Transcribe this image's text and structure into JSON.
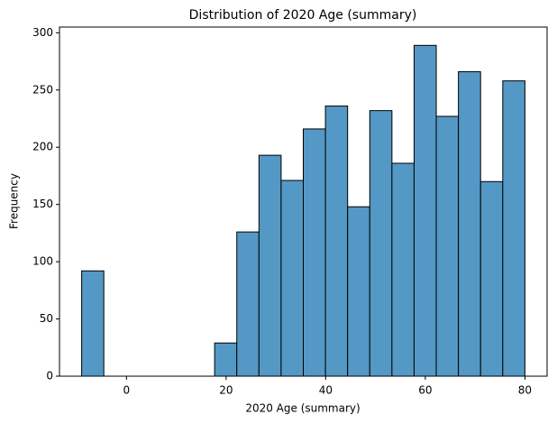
{
  "chart_data": {
    "type": "histogram",
    "title": "Distribution of 2020 Age (summary)",
    "x_label": "2020 Age (summary)",
    "y_label": "Frequency",
    "bins": [
      -9,
      -4.55,
      -0.1,
      4.35,
      8.8,
      13.25,
      17.7,
      22.15,
      26.6,
      31.05,
      35.5,
      39.95,
      44.4,
      48.85,
      53.3,
      57.75,
      62.2,
      66.65,
      71.1,
      75.55,
      80
    ],
    "values": [
      92,
      0,
      0,
      0,
      0,
      0,
      29,
      126,
      193,
      171,
      216,
      236,
      148,
      232,
      186,
      289,
      227,
      266,
      170,
      258
    ],
    "color": "#5498c6",
    "xlim": [
      -13.45,
      84.45
    ],
    "ylim": [
      0,
      305
    ],
    "xticks": [
      0,
      20,
      40,
      60,
      80
    ],
    "yticks": [
      0,
      50,
      100,
      150,
      200,
      250,
      300
    ]
  }
}
